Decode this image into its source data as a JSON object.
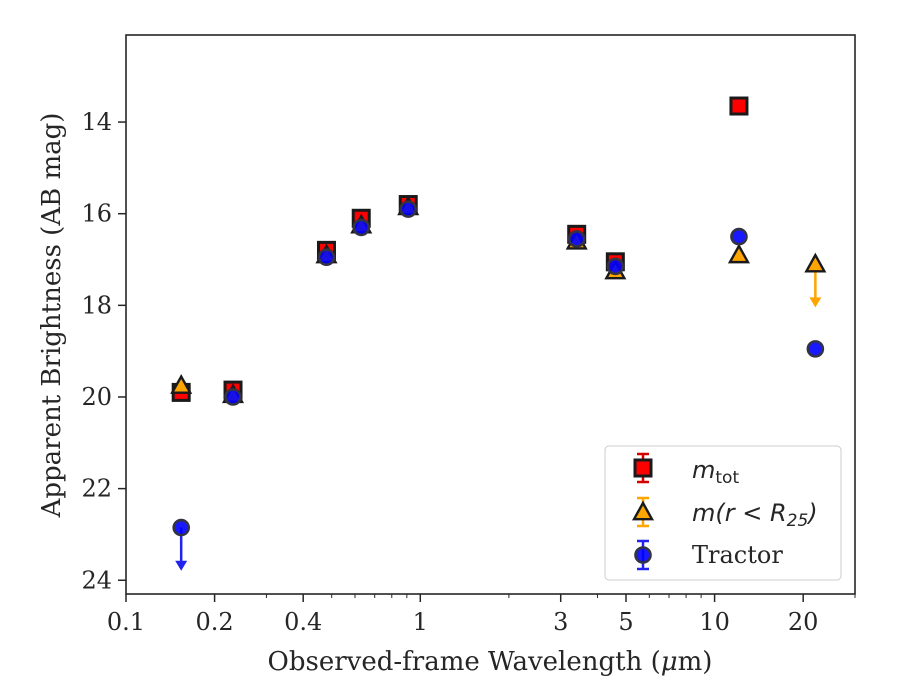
{
  "chart_data": {
    "type": "scatter",
    "xlabel_main": "Observed-frame Wavelength (",
    "xlabel_mu": "μ",
    "xlabel_tail": "m)",
    "ylabel": "Apparent Brightness (AB mag)",
    "xscale": "log",
    "xlim": [
      0.1,
      30
    ],
    "ylim": [
      24.3,
      12.1
    ],
    "y_inverted": true,
    "grid": false,
    "legend_position": "lower-right",
    "x_ticks": [
      {
        "value": 0.1,
        "label": "0.1"
      },
      {
        "value": 0.2,
        "label": "0.2"
      },
      {
        "value": 0.4,
        "label": "0.4"
      },
      {
        "value": 1,
        "label": "1"
      },
      {
        "value": 3,
        "label": "3"
      },
      {
        "value": 5,
        "label": "5"
      },
      {
        "value": 10,
        "label": "10"
      },
      {
        "value": 20,
        "label": "20"
      }
    ],
    "y_ticks": [
      {
        "value": 14,
        "label": "14"
      },
      {
        "value": 16,
        "label": "16"
      },
      {
        "value": 18,
        "label": "18"
      },
      {
        "value": 20,
        "label": "20"
      },
      {
        "value": 22,
        "label": "22"
      },
      {
        "value": 24,
        "label": "24"
      }
    ],
    "series": [
      {
        "legend_main": "m",
        "legend_sub": "tot",
        "legend_tail": "",
        "marker": "square",
        "color": "#ff0000",
        "errcolor": "#d40000",
        "points": [
          {
            "x": 0.154,
            "y": 19.9
          },
          {
            "x": 0.231,
            "y": 19.85
          },
          {
            "x": 0.48,
            "y": 16.8
          },
          {
            "x": 0.63,
            "y": 16.1
          },
          {
            "x": 0.91,
            "y": 15.8
          },
          {
            "x": 3.4,
            "y": 16.45
          },
          {
            "x": 4.6,
            "y": 17.05
          },
          {
            "x": 12.1,
            "y": 13.65
          }
        ]
      },
      {
        "legend_main": "m(r < R",
        "legend_sub": "25",
        "legend_tail": ")",
        "marker": "triangle",
        "color": "#ffa500",
        "errcolor": "#ffa500",
        "points": [
          {
            "x": 0.154,
            "y": 19.75
          },
          {
            "x": 0.231,
            "y": 19.95
          },
          {
            "x": 0.48,
            "y": 16.9
          },
          {
            "x": 0.63,
            "y": 16.25
          },
          {
            "x": 0.91,
            "y": 15.85
          },
          {
            "x": 3.4,
            "y": 16.6
          },
          {
            "x": 4.6,
            "y": 17.25
          },
          {
            "x": 12.1,
            "y": 16.9
          },
          {
            "x": 22,
            "y": 17.1,
            "upper_limit_to": 18.0
          }
        ]
      },
      {
        "legend_main": "Tractor",
        "legend_sub": "",
        "legend_tail": "",
        "marker": "circle",
        "color": "#0000ff",
        "errcolor": "#2222ee",
        "points": [
          {
            "x": 0.154,
            "y": 22.85,
            "upper_limit_to": 23.75
          },
          {
            "x": 0.231,
            "y": 20.0
          },
          {
            "x": 0.48,
            "y": 16.95
          },
          {
            "x": 0.63,
            "y": 16.3
          },
          {
            "x": 0.91,
            "y": 15.9
          },
          {
            "x": 3.4,
            "y": 16.55
          },
          {
            "x": 4.6,
            "y": 17.15
          },
          {
            "x": 12.1,
            "y": 16.5
          },
          {
            "x": 22,
            "y": 18.95
          }
        ]
      }
    ]
  }
}
